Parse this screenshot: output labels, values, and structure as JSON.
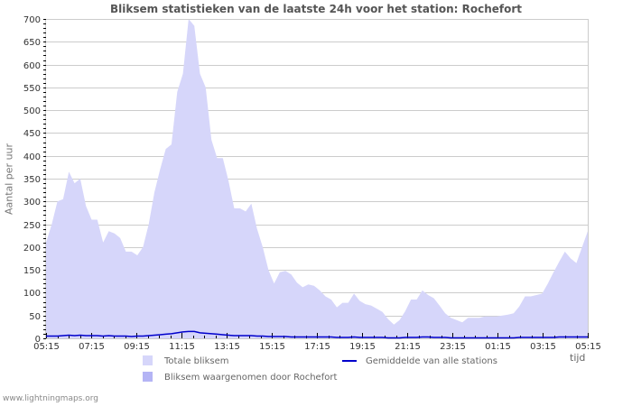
{
  "title": "Bliksem statistieken van de laatste 24h voor het station: Rochefort",
  "footer": "www.lightningmaps.org",
  "colors": {
    "total_fill": "#d6d6fa",
    "station_fill": "#b4b4f5",
    "average_line": "#0000cc",
    "grid": "#cccccc",
    "axis_text": "#333333"
  },
  "legend": {
    "total": "Totale bliksem",
    "station": "Bliksem waargenomen door Rochefort",
    "average": "Gemiddelde van alle stations"
  },
  "chart_data": {
    "type": "area",
    "title": "Bliksem statistieken van de laatste 24h voor het station: Rochefort",
    "xlabel": "tijd",
    "ylabel": "Aantal per uur",
    "ylim": [
      0,
      700
    ],
    "yticks": [
      0,
      50,
      100,
      150,
      200,
      250,
      300,
      350,
      400,
      450,
      500,
      550,
      600,
      650,
      700
    ],
    "xticks": [
      "05:15",
      "07:15",
      "09:15",
      "11:15",
      "13:15",
      "15:15",
      "17:15",
      "19:15",
      "21:15",
      "23:15",
      "01:15",
      "03:15",
      "05:15"
    ],
    "grid": true,
    "legend_position": "bottom",
    "x_interval_minutes": 15,
    "series": [
      {
        "name": "Totale bliksem",
        "style": "area",
        "values": [
          210,
          250,
          300,
          305,
          365,
          340,
          350,
          290,
          260,
          260,
          210,
          235,
          230,
          220,
          190,
          190,
          182,
          200,
          250,
          320,
          370,
          415,
          425,
          540,
          580,
          700,
          685,
          580,
          550,
          435,
          395,
          395,
          345,
          285,
          285,
          278,
          295,
          240,
          200,
          150,
          120,
          145,
          148,
          140,
          122,
          112,
          118,
          115,
          105,
          92,
          85,
          68,
          78,
          78,
          98,
          82,
          75,
          72,
          65,
          58,
          42,
          30,
          40,
          60,
          85,
          85,
          105,
          95,
          88,
          72,
          55,
          45,
          40,
          35,
          45,
          45,
          45,
          48,
          48,
          48,
          50,
          52,
          55,
          70,
          92,
          92,
          95,
          98,
          120,
          145,
          168,
          190,
          175,
          165,
          200,
          235
        ]
      },
      {
        "name": "Bliksem waargenomen door Rochefort",
        "style": "area",
        "values": [
          0,
          0,
          0,
          0,
          0,
          0,
          0,
          0,
          0,
          0,
          0,
          0,
          0,
          0,
          0,
          0,
          0,
          0,
          0,
          0,
          0,
          0,
          0,
          0,
          0,
          0,
          0,
          0,
          0,
          0,
          0,
          0,
          0,
          0,
          0,
          0,
          0,
          0,
          0,
          0,
          0,
          0,
          0,
          0,
          0,
          0,
          0,
          0,
          0,
          0,
          0,
          0,
          0,
          0,
          0,
          0,
          0,
          0,
          0,
          0,
          0,
          0,
          0,
          0,
          0,
          0,
          0,
          0,
          0,
          0,
          0,
          0,
          0,
          0,
          0,
          0,
          0,
          0,
          0,
          0,
          0,
          0,
          0,
          0,
          0,
          0,
          0,
          0,
          0,
          0,
          0,
          0,
          0,
          0,
          0,
          0
        ]
      },
      {
        "name": "Gemiddelde van alle stations",
        "style": "line",
        "values": [
          5,
          5,
          5,
          6,
          7,
          6,
          7,
          6,
          6,
          6,
          5,
          6,
          5,
          5,
          5,
          4,
          5,
          5,
          6,
          7,
          8,
          9,
          10,
          12,
          14,
          15,
          15,
          12,
          11,
          10,
          9,
          8,
          7,
          6,
          6,
          6,
          6,
          5,
          5,
          4,
          4,
          4,
          4,
          3,
          3,
          3,
          3,
          3,
          3,
          3,
          3,
          2,
          2,
          2,
          3,
          2,
          2,
          2,
          2,
          2,
          1,
          1,
          1,
          2,
          2,
          2,
          3,
          3,
          2,
          2,
          2,
          1,
          1,
          1,
          1,
          1,
          1,
          1,
          1,
          1,
          1,
          1,
          1,
          2,
          2,
          2,
          2,
          2,
          2,
          2,
          3,
          3,
          3,
          3,
          3,
          3
        ]
      }
    ]
  }
}
